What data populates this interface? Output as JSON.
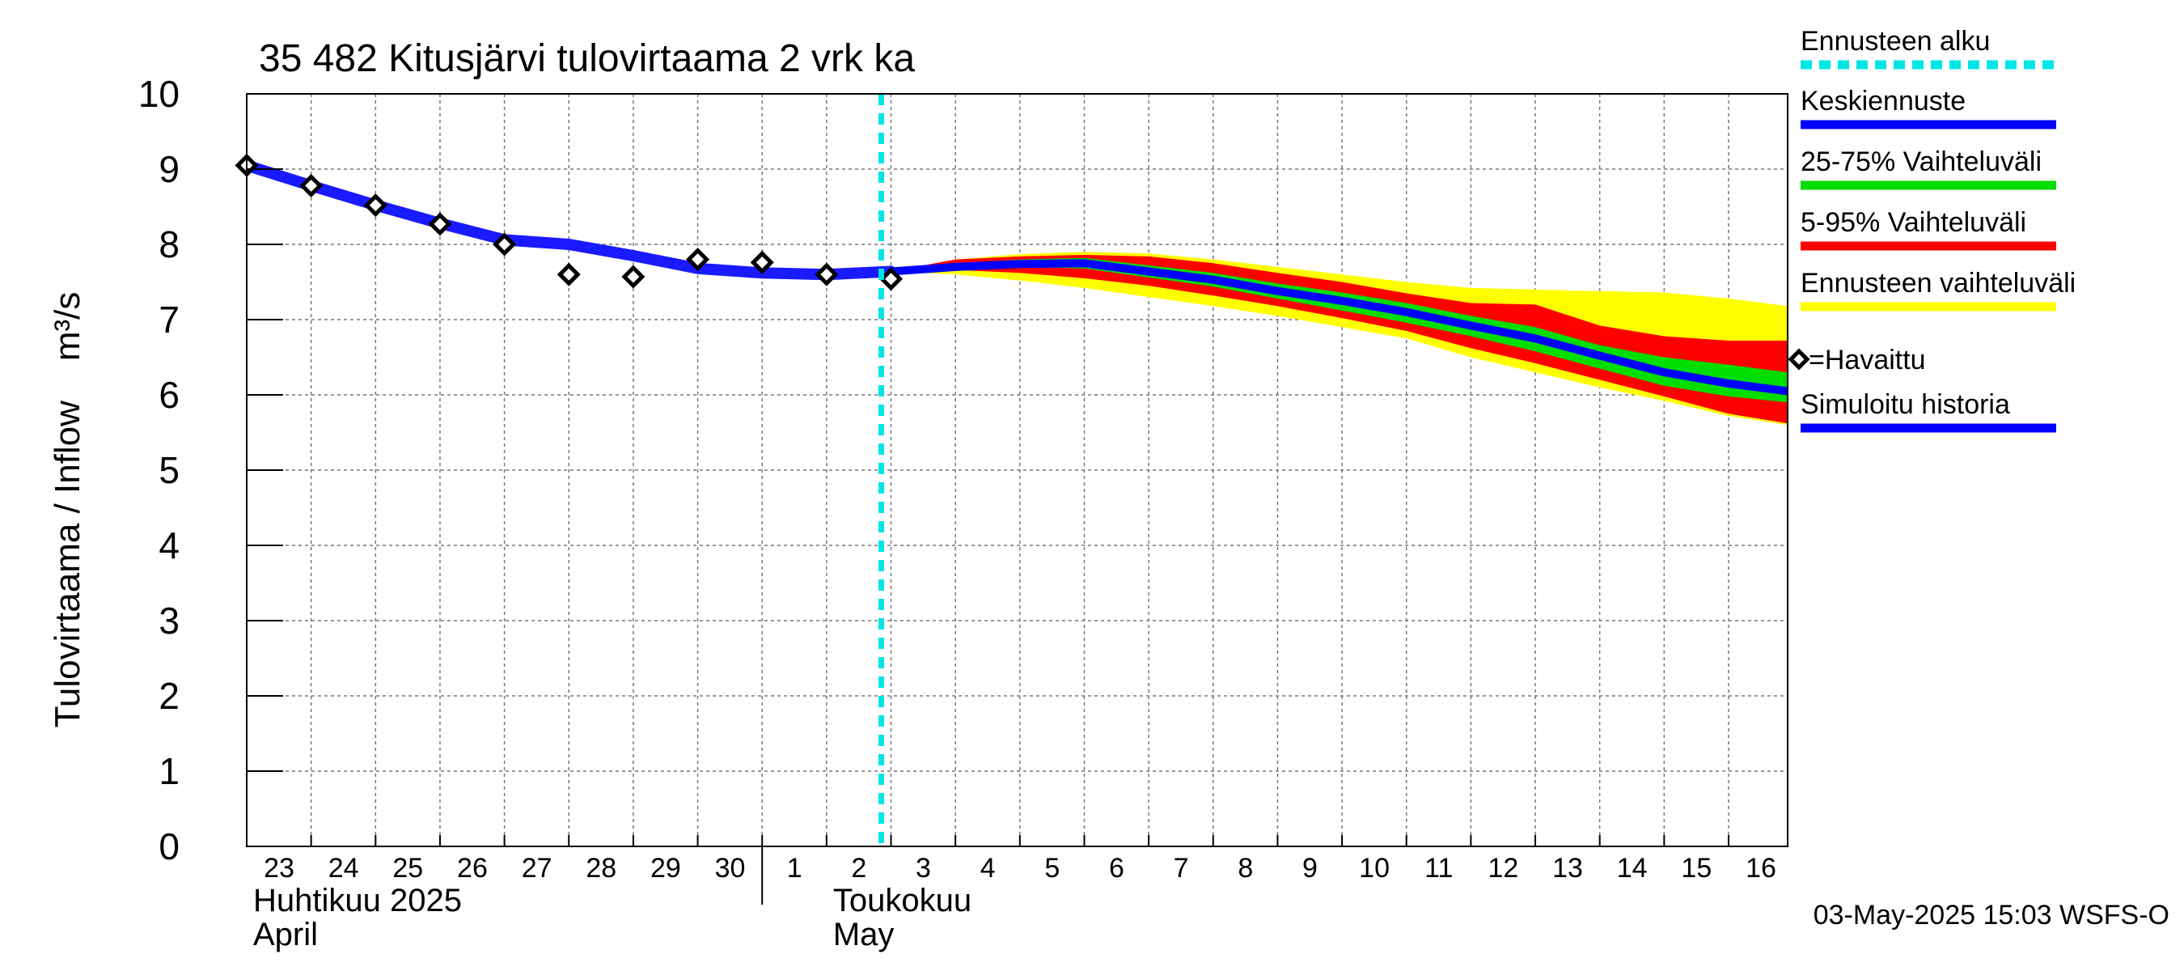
{
  "chart_data": {
    "type": "line",
    "title": "35 482 Kitusjärvi tulovirtaama 2 vrk ka",
    "ylabel": "Tulovirtaama / Inflow    m³/s",
    "ylim": [
      0,
      10
    ],
    "yticks": [
      "0",
      "1",
      "2",
      "3",
      "4",
      "5",
      "6",
      "7",
      "8",
      "9",
      "10"
    ],
    "xlim": [
      "2025-04-23",
      "2025-05-16T22:00"
    ],
    "x_tick_labels": [
      {
        "date": "2025-04-23",
        "label": "23"
      },
      {
        "date": "2025-04-24",
        "label": "24"
      },
      {
        "date": "2025-04-25",
        "label": "25"
      },
      {
        "date": "2025-04-26",
        "label": "26"
      },
      {
        "date": "2025-04-27",
        "label": "27"
      },
      {
        "date": "2025-04-28",
        "label": "28"
      },
      {
        "date": "2025-04-29",
        "label": "29"
      },
      {
        "date": "2025-04-30",
        "label": "30"
      },
      {
        "date": "2025-05-01",
        "label": "1"
      },
      {
        "date": "2025-05-02",
        "label": "2"
      },
      {
        "date": "2025-05-03",
        "label": "3"
      },
      {
        "date": "2025-05-04",
        "label": "4"
      },
      {
        "date": "2025-05-05",
        "label": "5"
      },
      {
        "date": "2025-05-06",
        "label": "6"
      },
      {
        "date": "2025-05-07",
        "label": "7"
      },
      {
        "date": "2025-05-08",
        "label": "8"
      },
      {
        "date": "2025-05-09",
        "label": "9"
      },
      {
        "date": "2025-05-10",
        "label": "10"
      },
      {
        "date": "2025-05-11",
        "label": "11"
      },
      {
        "date": "2025-05-12",
        "label": "12"
      },
      {
        "date": "2025-05-13",
        "label": "13"
      },
      {
        "date": "2025-05-14",
        "label": "14"
      },
      {
        "date": "2025-05-15",
        "label": "15"
      },
      {
        "date": "2025-05-16",
        "label": "16"
      }
    ],
    "month_labels": [
      {
        "date": "2025-04-23",
        "line1": "Huhtikuu  2025",
        "line2": "April"
      },
      {
        "date": "2025-05-02",
        "line1": "Toukokuu",
        "line2": "May"
      }
    ],
    "month_separator": "2025-05-01",
    "forecast_start": "2025-05-03",
    "grid": true,
    "legend_position": "right",
    "legend": [
      {
        "label": "Ennusteen alku",
        "color": "#00e5e5",
        "style": "dashed"
      },
      {
        "label": "Keskiennuste",
        "color": "#0000ff",
        "style": "solid"
      },
      {
        "label": "25-75% Vaihteluväli",
        "color": "#00dd00",
        "style": "solid"
      },
      {
        "label": "5-95% Vaihteluväli",
        "color": "#ff0000",
        "style": "solid"
      },
      {
        "label": "Ennusteen vaihteluväli",
        "color": "#ffff00",
        "style": "solid"
      },
      {
        "label": "=Havaittu",
        "color": "#000000",
        "style": "marker"
      },
      {
        "label": "Simuloitu historia",
        "color": "#0000ff",
        "style": "solid"
      }
    ],
    "colors": {
      "simulated": "#1a1aff",
      "median": "#0000ff",
      "band_25_75": "#00dd00",
      "band_5_95": "#ff0000",
      "band_full": "#ffff00",
      "forecast_start": "#00e5e5",
      "observed": "#000000"
    },
    "series": [
      {
        "name": "Simuloitu historia",
        "x": [
          "2025-04-23",
          "2025-04-24",
          "2025-04-25",
          "2025-04-26",
          "2025-04-27",
          "2025-04-28",
          "2025-04-29",
          "2025-04-30",
          "2025-05-01",
          "2025-05-02",
          "2025-05-03"
        ],
        "values": [
          9.05,
          8.78,
          8.52,
          8.28,
          8.06,
          8.0,
          7.85,
          7.68,
          7.62,
          7.6,
          7.64
        ]
      },
      {
        "name": "Keskiennuste",
        "x": [
          "2025-05-03",
          "2025-05-04",
          "2025-05-05",
          "2025-05-06",
          "2025-05-07",
          "2025-05-08",
          "2025-05-09",
          "2025-05-10",
          "2025-05-11",
          "2025-05-12",
          "2025-05-13",
          "2025-05-14",
          "2025-05-15",
          "2025-05-16",
          "2025-05-16T22:00"
        ],
        "values": [
          7.64,
          7.7,
          7.74,
          7.75,
          7.64,
          7.53,
          7.38,
          7.25,
          7.1,
          6.92,
          6.75,
          6.52,
          6.3,
          6.15,
          6.05
        ]
      },
      {
        "name": "=Havaittu",
        "x": [
          "2025-04-23",
          "2025-04-24",
          "2025-04-25",
          "2025-04-26",
          "2025-04-27",
          "2025-04-28",
          "2025-04-29",
          "2025-04-30",
          "2025-05-01",
          "2025-05-02",
          "2025-05-03"
        ],
        "values": [
          9.05,
          8.78,
          8.52,
          8.27,
          8.0,
          7.6,
          7.57,
          7.8,
          7.76,
          7.6,
          7.54
        ]
      }
    ],
    "bands": [
      {
        "name": "Ennusteen vaihteluväli",
        "x": [
          "2025-05-03",
          "2025-05-04",
          "2025-05-05",
          "2025-05-06",
          "2025-05-07",
          "2025-05-08",
          "2025-05-09",
          "2025-05-10",
          "2025-05-11",
          "2025-05-12",
          "2025-05-13",
          "2025-05-14",
          "2025-05-15",
          "2025-05-16",
          "2025-05-16T22:00"
        ],
        "upper": [
          7.64,
          7.8,
          7.87,
          7.9,
          7.88,
          7.8,
          7.7,
          7.6,
          7.5,
          7.42,
          7.4,
          7.38,
          7.36,
          7.28,
          7.18
        ],
        "lower": [
          7.64,
          7.6,
          7.52,
          7.42,
          7.3,
          7.18,
          7.05,
          6.9,
          6.75,
          6.5,
          6.3,
          6.1,
          5.92,
          5.72,
          5.6
        ]
      },
      {
        "name": "5-95% Vaihteluväli",
        "x": [
          "2025-05-03",
          "2025-05-04",
          "2025-05-05",
          "2025-05-06",
          "2025-05-07",
          "2025-05-08",
          "2025-05-09",
          "2025-05-10",
          "2025-05-11",
          "2025-05-12",
          "2025-05-13",
          "2025-05-14",
          "2025-05-15",
          "2025-05-16",
          "2025-05-16T22:00"
        ],
        "upper": [
          7.64,
          7.8,
          7.84,
          7.86,
          7.84,
          7.75,
          7.62,
          7.5,
          7.35,
          7.22,
          7.2,
          6.92,
          6.78,
          6.72,
          6.72
        ],
        "lower": [
          7.64,
          7.66,
          7.62,
          7.55,
          7.45,
          7.32,
          7.18,
          7.02,
          6.85,
          6.62,
          6.42,
          6.2,
          5.98,
          5.75,
          5.62
        ]
      },
      {
        "name": "25-75% Vaihteluväli",
        "x": [
          "2025-05-03",
          "2025-05-04",
          "2025-05-05",
          "2025-05-06",
          "2025-05-07",
          "2025-05-08",
          "2025-05-09",
          "2025-05-10",
          "2025-05-11",
          "2025-05-12",
          "2025-05-13",
          "2025-05-14",
          "2025-05-15",
          "2025-05-16",
          "2025-05-16T22:00"
        ],
        "upper": [
          7.64,
          7.74,
          7.8,
          7.82,
          7.72,
          7.62,
          7.48,
          7.36,
          7.22,
          7.05,
          6.9,
          6.66,
          6.5,
          6.4,
          6.3
        ],
        "lower": [
          7.64,
          7.68,
          7.7,
          7.68,
          7.56,
          7.44,
          7.28,
          7.12,
          6.96,
          6.78,
          6.58,
          6.35,
          6.12,
          5.98,
          5.9
        ]
      }
    ],
    "footer": "03-May-2025 15:03 WSFS-O"
  }
}
